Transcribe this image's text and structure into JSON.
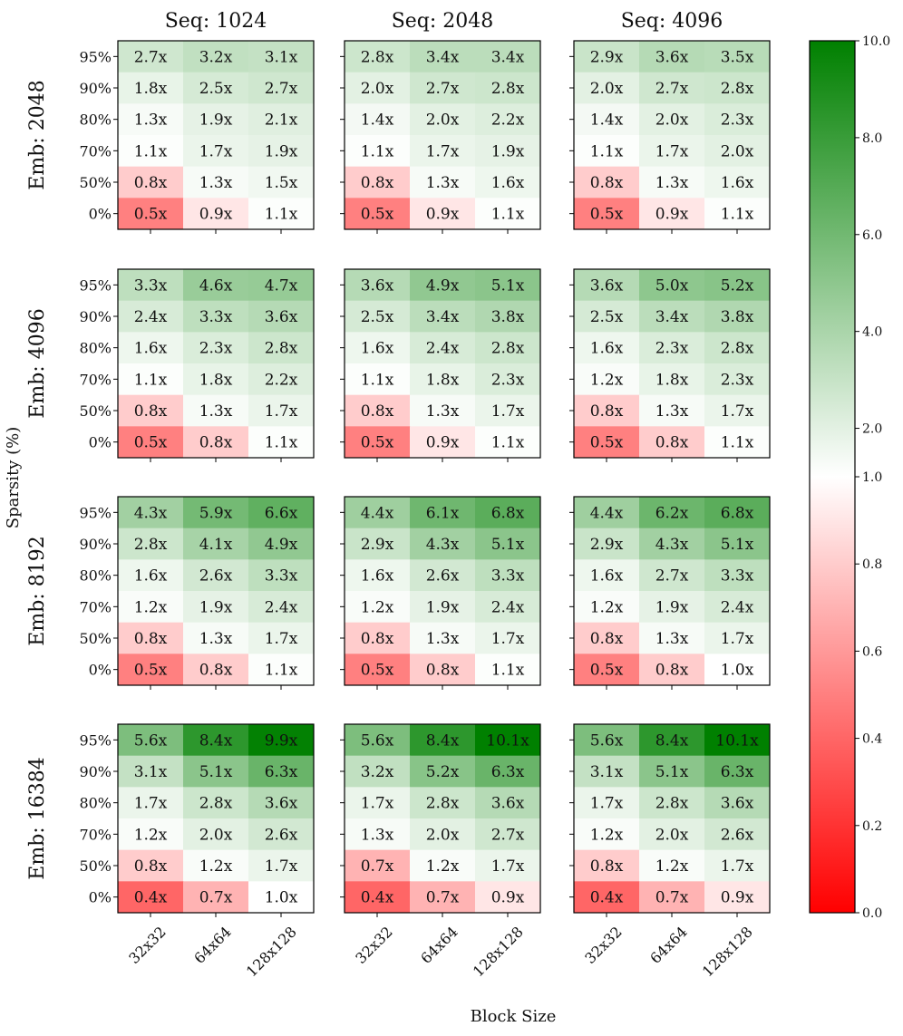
{
  "chart_data": {
    "type": "heatmap",
    "description_title": "",
    "columns": [
      "Seq: 1024",
      "Seq: 2048",
      "Seq: 4096"
    ],
    "rows": [
      "Emb: 2048",
      "Emb: 4096",
      "Emb: 8192",
      "Emb: 16384"
    ],
    "xlabel": "Block Size",
    "ylabel": "Sparsity (%)",
    "x_ticks": [
      "32x32",
      "64x64",
      "128x128"
    ],
    "y_ticks": [
      "95%",
      "90%",
      "80%",
      "70%",
      "50%",
      "0%"
    ],
    "colorbar": {
      "ticks": [
        "0.0",
        "0.2",
        "0.4",
        "0.6",
        "0.8",
        "1.0",
        "2.0",
        "4.0",
        "6.0",
        "8.0",
        "10.0"
      ],
      "colors": {
        "low": "#ff0000",
        "mid": "#ffffff",
        "high": "#008000"
      }
    },
    "panels": [
      [
        {
          "labels": [
            [
              "2.7x",
              "3.2x",
              "3.1x"
            ],
            [
              "1.8x",
              "2.5x",
              "2.7x"
            ],
            [
              "1.3x",
              "1.9x",
              "2.1x"
            ],
            [
              "1.1x",
              "1.7x",
              "1.9x"
            ],
            [
              "0.8x",
              "1.3x",
              "1.5x"
            ],
            [
              "0.5x",
              "0.9x",
              "1.1x"
            ]
          ]
        },
        {
          "labels": [
            [
              "2.8x",
              "3.4x",
              "3.4x"
            ],
            [
              "2.0x",
              "2.7x",
              "2.8x"
            ],
            [
              "1.4x",
              "2.0x",
              "2.2x"
            ],
            [
              "1.1x",
              "1.7x",
              "1.9x"
            ],
            [
              "0.8x",
              "1.3x",
              "1.6x"
            ],
            [
              "0.5x",
              "0.9x",
              "1.1x"
            ]
          ]
        },
        {
          "labels": [
            [
              "2.9x",
              "3.6x",
              "3.5x"
            ],
            [
              "2.0x",
              "2.7x",
              "2.8x"
            ],
            [
              "1.4x",
              "2.0x",
              "2.3x"
            ],
            [
              "1.1x",
              "1.7x",
              "2.0x"
            ],
            [
              "0.8x",
              "1.3x",
              "1.6x"
            ],
            [
              "0.5x",
              "0.9x",
              "1.1x"
            ]
          ]
        }
      ],
      [
        {
          "labels": [
            [
              "3.3x",
              "4.6x",
              "4.7x"
            ],
            [
              "2.4x",
              "3.3x",
              "3.6x"
            ],
            [
              "1.6x",
              "2.3x",
              "2.8x"
            ],
            [
              "1.1x",
              "1.8x",
              "2.2x"
            ],
            [
              "0.8x",
              "1.3x",
              "1.7x"
            ],
            [
              "0.5x",
              "0.8x",
              "1.1x"
            ]
          ]
        },
        {
          "labels": [
            [
              "3.6x",
              "4.9x",
              "5.1x"
            ],
            [
              "2.5x",
              "3.4x",
              "3.8x"
            ],
            [
              "1.6x",
              "2.4x",
              "2.8x"
            ],
            [
              "1.1x",
              "1.8x",
              "2.3x"
            ],
            [
              "0.8x",
              "1.3x",
              "1.7x"
            ],
            [
              "0.5x",
              "0.9x",
              "1.1x"
            ]
          ]
        },
        {
          "labels": [
            [
              "3.6x",
              "5.0x",
              "5.2x"
            ],
            [
              "2.5x",
              "3.4x",
              "3.8x"
            ],
            [
              "1.6x",
              "2.3x",
              "2.8x"
            ],
            [
              "1.2x",
              "1.8x",
              "2.3x"
            ],
            [
              "0.8x",
              "1.3x",
              "1.7x"
            ],
            [
              "0.5x",
              "0.8x",
              "1.1x"
            ]
          ]
        }
      ],
      [
        {
          "labels": [
            [
              "4.3x",
              "5.9x",
              "6.6x"
            ],
            [
              "2.8x",
              "4.1x",
              "4.9x"
            ],
            [
              "1.6x",
              "2.6x",
              "3.3x"
            ],
            [
              "1.2x",
              "1.9x",
              "2.4x"
            ],
            [
              "0.8x",
              "1.3x",
              "1.7x"
            ],
            [
              "0.5x",
              "0.8x",
              "1.1x"
            ]
          ]
        },
        {
          "labels": [
            [
              "4.4x",
              "6.1x",
              "6.8x"
            ],
            [
              "2.9x",
              "4.3x",
              "5.1x"
            ],
            [
              "1.6x",
              "2.6x",
              "3.3x"
            ],
            [
              "1.2x",
              "1.9x",
              "2.4x"
            ],
            [
              "0.8x",
              "1.3x",
              "1.7x"
            ],
            [
              "0.5x",
              "0.8x",
              "1.1x"
            ]
          ]
        },
        {
          "labels": [
            [
              "4.4x",
              "6.2x",
              "6.8x"
            ],
            [
              "2.9x",
              "4.3x",
              "5.1x"
            ],
            [
              "1.6x",
              "2.7x",
              "3.3x"
            ],
            [
              "1.2x",
              "1.9x",
              "2.4x"
            ],
            [
              "0.8x",
              "1.3x",
              "1.7x"
            ],
            [
              "0.5x",
              "0.8x",
              "1.0x"
            ]
          ]
        }
      ],
      [
        {
          "labels": [
            [
              "5.6x",
              "8.4x",
              "9.9x"
            ],
            [
              "3.1x",
              "5.1x",
              "6.3x"
            ],
            [
              "1.7x",
              "2.8x",
              "3.6x"
            ],
            [
              "1.2x",
              "2.0x",
              "2.6x"
            ],
            [
              "0.8x",
              "1.2x",
              "1.7x"
            ],
            [
              "0.4x",
              "0.7x",
              "1.0x"
            ]
          ]
        },
        {
          "labels": [
            [
              "5.6x",
              "8.4x",
              "10.1x"
            ],
            [
              "3.2x",
              "5.2x",
              "6.3x"
            ],
            [
              "1.7x",
              "2.8x",
              "3.6x"
            ],
            [
              "1.3x",
              "2.0x",
              "2.7x"
            ],
            [
              "0.7x",
              "1.2x",
              "1.7x"
            ],
            [
              "0.4x",
              "0.7x",
              "0.9x"
            ]
          ]
        },
        {
          "labels": [
            [
              "5.6x",
              "8.4x",
              "10.1x"
            ],
            [
              "3.1x",
              "5.1x",
              "6.3x"
            ],
            [
              "1.7x",
              "2.8x",
              "3.6x"
            ],
            [
              "1.2x",
              "2.0x",
              "2.6x"
            ],
            [
              "0.8x",
              "1.2x",
              "1.7x"
            ],
            [
              "0.4x",
              "0.7x",
              "0.9x"
            ]
          ]
        }
      ]
    ]
  }
}
